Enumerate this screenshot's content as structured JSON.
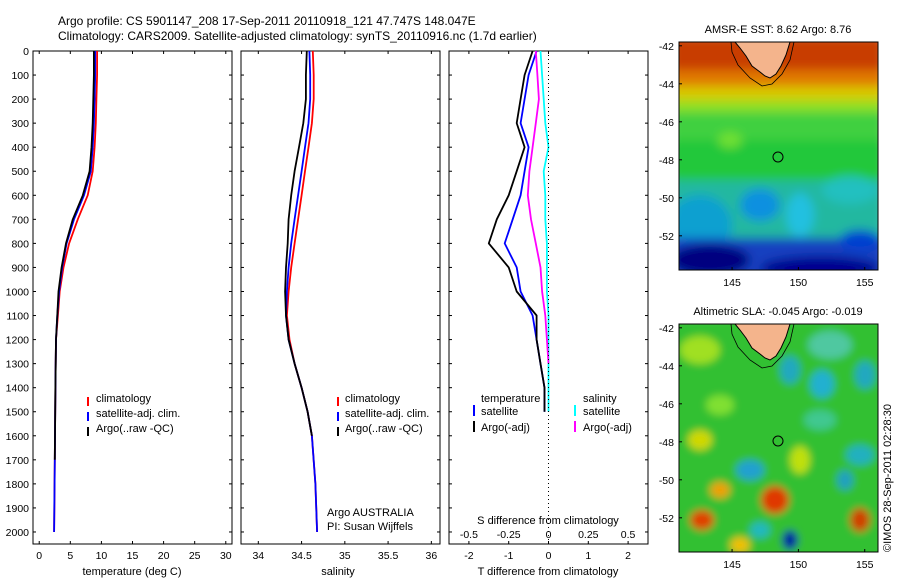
{
  "header": {
    "line1": "Argo profile: CS 5901147_208 17-Sep-2011 20110918_121 47.747S 148.047E",
    "line2": "Climatology: CARS2009. Satellite-adjusted climatology: synTS_20110916.nc (1.7d earlier)"
  },
  "side_stamp": "©IMOS 28-Sep-2011 02:28:30",
  "colors": {
    "climatology": "#ff0000",
    "satellite": "#0000ff",
    "argo": "#000000",
    "salinity_satellite": "#00ffff",
    "salinity_argo": "#ff00ff",
    "land": "#f4b48c"
  },
  "chart_data": [
    {
      "type": "line",
      "panel": "temperature",
      "xlabel": "temperature (deg C)",
      "xlim": [
        -1,
        31
      ],
      "xticks": [
        "0",
        "5",
        "10",
        "15",
        "20",
        "25",
        "30"
      ],
      "ylim": [
        0,
        2050
      ],
      "yticks": [
        "0",
        "100",
        "200",
        "300",
        "400",
        "500",
        "600",
        "700",
        "800",
        "900",
        "1000",
        "1100",
        "1200",
        "1300",
        "1400",
        "1500",
        "1600",
        "1700",
        "1800",
        "1900",
        "2000"
      ],
      "series": [
        {
          "name": "climatology",
          "x": [
            9.3,
            9.3,
            9.2,
            9.1,
            8.9,
            8.6,
            7.8,
            6.2,
            4.8,
            3.9,
            3.3,
            3.0,
            2.7,
            2.6,
            2.5,
            2.4
          ],
          "y": [
            0,
            100,
            200,
            300,
            400,
            500,
            600,
            700,
            800,
            900,
            1000,
            1100,
            1200,
            1400,
            1700,
            2000
          ]
        },
        {
          "name": "satellite-adj. clim.",
          "x": [
            9.0,
            9.0,
            8.9,
            8.8,
            8.6,
            8.3,
            7.2,
            5.6,
            4.4,
            3.7,
            3.2,
            2.9,
            2.7,
            2.6,
            2.5,
            2.4
          ],
          "y": [
            0,
            100,
            200,
            300,
            400,
            500,
            600,
            700,
            800,
            900,
            1000,
            1100,
            1200,
            1400,
            1700,
            2000
          ]
        },
        {
          "name": "Argo(..raw -QC)",
          "x": [
            8.8,
            8.8,
            8.7,
            8.6,
            8.4,
            8.1,
            7.0,
            5.4,
            4.3,
            3.6,
            3.1,
            2.9,
            2.7,
            2.6,
            2.5
          ],
          "y": [
            0,
            100,
            200,
            300,
            400,
            500,
            600,
            700,
            800,
            900,
            1000,
            1100,
            1200,
            1400,
            1700
          ]
        }
      ],
      "legend": [
        "climatology",
        "satellite-adj. clim.",
        "Argo(..raw -QC)"
      ]
    },
    {
      "type": "line",
      "panel": "salinity",
      "xlabel": "salinity",
      "xlim": [
        33.8,
        36.1
      ],
      "xticks": [
        "34",
        "34.5",
        "35",
        "35.5",
        "36"
      ],
      "ylim": [
        0,
        2050
      ],
      "series": [
        {
          "name": "climatology",
          "x": [
            34.63,
            34.64,
            34.64,
            34.62,
            34.58,
            34.54,
            34.5,
            34.46,
            34.42,
            34.38,
            34.35,
            34.33,
            34.36,
            34.42,
            34.5,
            34.57,
            34.62,
            34.66,
            34.68
          ],
          "y": [
            0,
            100,
            200,
            300,
            400,
            500,
            600,
            700,
            800,
            900,
            1000,
            1100,
            1200,
            1300,
            1400,
            1500,
            1600,
            1800,
            2000
          ]
        },
        {
          "name": "satellite-adj. clim.",
          "x": [
            34.59,
            34.6,
            34.6,
            34.58,
            34.54,
            34.5,
            34.46,
            34.42,
            34.38,
            34.35,
            34.33,
            34.32,
            34.35,
            34.42,
            34.5,
            34.57,
            34.62,
            34.66,
            34.68
          ],
          "y": [
            0,
            100,
            200,
            300,
            400,
            500,
            600,
            700,
            800,
            900,
            1000,
            1100,
            1200,
            1300,
            1400,
            1500,
            1600,
            1800,
            2000
          ]
        },
        {
          "name": "Argo(..raw -QC)",
          "x": [
            34.56,
            34.55,
            34.55,
            34.52,
            34.47,
            34.42,
            34.38,
            34.35,
            34.34,
            34.32,
            34.31,
            34.32,
            34.35,
            34.42,
            34.5,
            34.57,
            34.62
          ],
          "y": [
            0,
            100,
            200,
            300,
            400,
            500,
            600,
            700,
            800,
            900,
            1000,
            1100,
            1200,
            1300,
            1400,
            1500,
            1600
          ]
        }
      ],
      "legend": [
        "climatology",
        "satellite-adj. clim.",
        "Argo(..raw -QC)"
      ],
      "annotation": [
        "Argo AUSTRALIA",
        "PI: Susan Wijffels"
      ]
    },
    {
      "type": "line",
      "panel": "difference",
      "xlabel": "T difference from climatology",
      "xlabel_top": "S difference from climatology",
      "xlim": [
        -2.5,
        2.5
      ],
      "xticks": [
        "-2",
        "-1",
        "0",
        "1",
        "2"
      ],
      "xticks_top": [
        "-0.5",
        "-0.25",
        "0",
        "0.25",
        "0.5"
      ],
      "ylim": [
        0,
        2050
      ],
      "series": [
        {
          "name": "temperature satellite",
          "axis": "T",
          "x": [
            -0.3,
            -0.5,
            -0.6,
            -0.7,
            -0.5,
            -0.6,
            -0.7,
            -0.9,
            -1.1,
            -0.8,
            -0.7,
            -0.4,
            -0.3,
            -0.2,
            -0.1,
            -0.1
          ],
          "y": [
            0,
            100,
            200,
            300,
            400,
            500,
            600,
            700,
            800,
            900,
            1000,
            1100,
            1200,
            1300,
            1400,
            1500
          ]
        },
        {
          "name": "temperature Argo(-adj)",
          "axis": "T",
          "x": [
            -0.4,
            -0.6,
            -0.7,
            -0.8,
            -0.6,
            -0.8,
            -1.0,
            -1.3,
            -1.5,
            -1.0,
            -0.8,
            -0.3,
            -0.3,
            -0.2,
            -0.1,
            -0.1
          ],
          "y": [
            0,
            100,
            200,
            300,
            400,
            500,
            600,
            700,
            800,
            900,
            1000,
            1100,
            1200,
            1300,
            1400,
            1500
          ]
        },
        {
          "name": "salinity satellite",
          "axis": "S",
          "x": [
            -0.05,
            -0.04,
            -0.03,
            -0.02,
            0.0,
            -0.03,
            -0.02,
            -0.02,
            -0.01,
            -0.01,
            -0.01,
            0.0,
            0.0,
            0.0,
            0.0,
            0.0
          ],
          "y": [
            0,
            100,
            200,
            300,
            400,
            500,
            600,
            700,
            800,
            900,
            1000,
            1100,
            1200,
            1300,
            1400,
            1500
          ]
        },
        {
          "name": "salinity Argo(-adj)",
          "axis": "S",
          "x": [
            -0.08,
            -0.07,
            -0.06,
            -0.08,
            -0.1,
            -0.12,
            -0.13,
            -0.11,
            -0.08,
            -0.05,
            -0.04,
            -0.02,
            -0.01,
            0.0
          ],
          "y": [
            0,
            100,
            200,
            300,
            400,
            500,
            600,
            700,
            800,
            900,
            1000,
            1100,
            1200,
            1300
          ]
        }
      ],
      "legend_titles": [
        "temperature",
        "salinity"
      ],
      "legend": [
        "satellite",
        "Argo(-adj)",
        "satellite",
        "Argo(-adj)"
      ]
    },
    {
      "type": "heatmap",
      "panel": "sst_map",
      "title": "AMSR-E SST: 8.62 Argo: 8.76",
      "xticks": [
        "145",
        "150",
        "155"
      ],
      "yticks": [
        "-42",
        "-44",
        "-46",
        "-48",
        "-50",
        "-52"
      ],
      "xlim": [
        141,
        156
      ],
      "ylim": [
        -53.8,
        -41.8
      ],
      "marker": {
        "lon": 148.047,
        "lat": -47.747
      }
    },
    {
      "type": "heatmap",
      "panel": "sla_map",
      "title": "Altimetric SLA: -0.045 Argo: -0.019",
      "xticks": [
        "145",
        "150",
        "155"
      ],
      "yticks": [
        "-42",
        "-44",
        "-46",
        "-48",
        "-50",
        "-52"
      ],
      "xlim": [
        141,
        156
      ],
      "ylim": [
        -53.8,
        -41.8
      ],
      "marker": {
        "lon": 148.047,
        "lat": -47.747
      }
    }
  ]
}
